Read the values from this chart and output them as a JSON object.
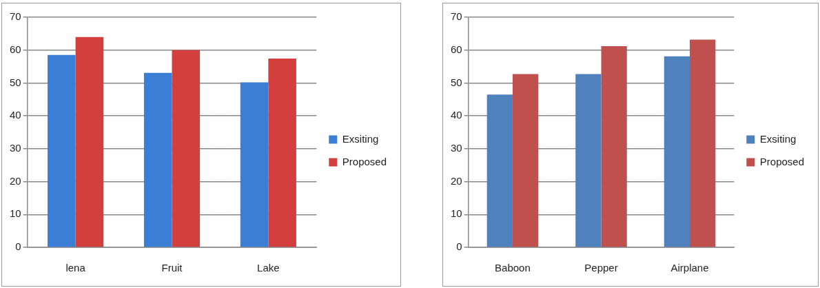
{
  "chart_data": [
    {
      "type": "bar",
      "categories": [
        "lena",
        "Fruit",
        "Lake"
      ],
      "series": [
        {
          "name": "Exsiting",
          "color": "#3a7fd5",
          "values": [
            58.5,
            53.1,
            50.2
          ]
        },
        {
          "name": "Proposed",
          "color": "#d33f3d",
          "values": [
            64.0,
            60.0,
            57.4
          ]
        }
      ],
      "ylim": [
        0,
        70
      ],
      "yticks": [
        0,
        10,
        20,
        30,
        40,
        50,
        60,
        70
      ],
      "grid": "y",
      "legend": "right"
    },
    {
      "type": "bar",
      "categories": [
        "Baboon",
        "Pepper",
        "Airplane"
      ],
      "series": [
        {
          "name": "Exsiting",
          "color": "#4f81bd",
          "values": [
            46.5,
            52.7,
            58.1
          ]
        },
        {
          "name": "Proposed",
          "color": "#c0504d",
          "values": [
            52.7,
            61.2,
            63.2
          ]
        }
      ],
      "ylim": [
        0,
        70
      ],
      "yticks": [
        0,
        10,
        20,
        30,
        40,
        50,
        60,
        70
      ],
      "grid": "y",
      "legend": "right"
    }
  ]
}
